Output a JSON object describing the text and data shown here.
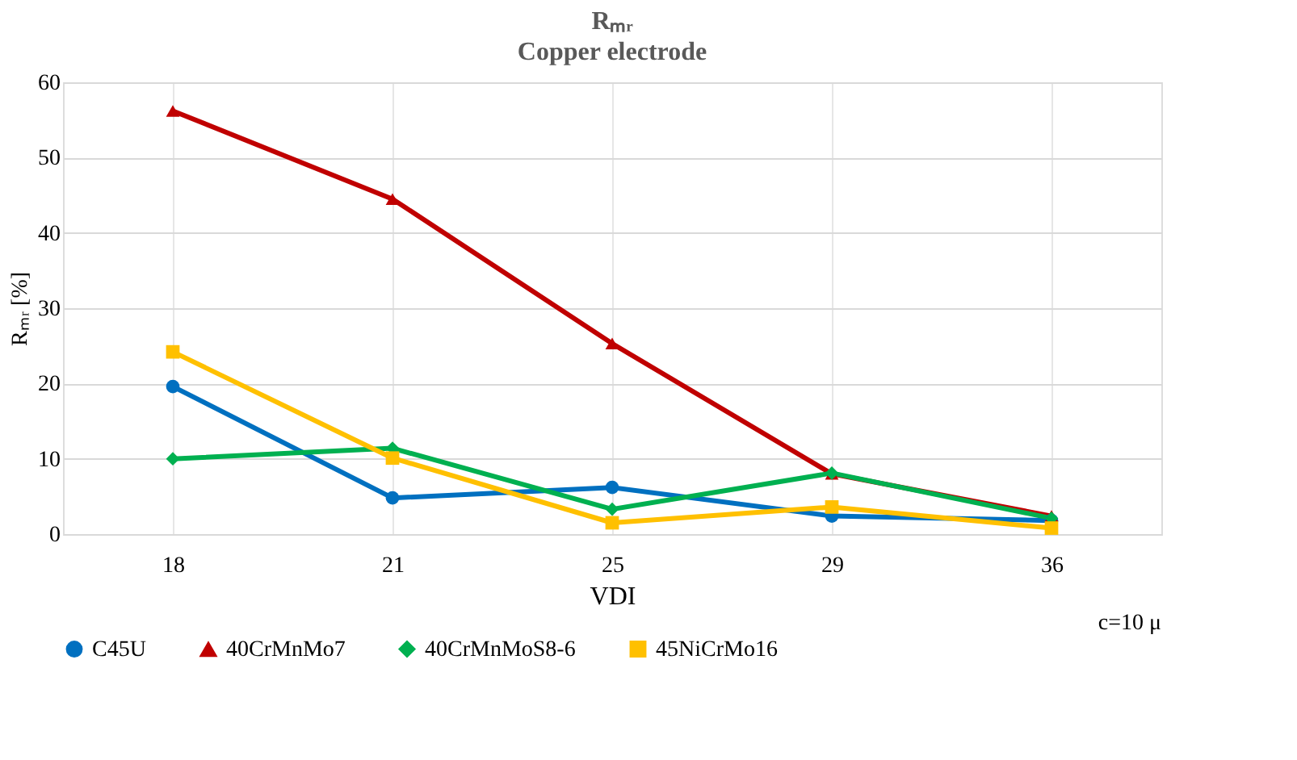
{
  "chart_data": {
    "type": "line",
    "title": "Rₘᵣ",
    "subtitle": "Copper electrode",
    "xlabel": "VDI",
    "ylabel": "Rₘᵣ [%]",
    "categories": [
      "18",
      "21",
      "25",
      "29",
      "36"
    ],
    "series": [
      {
        "name": "C45U",
        "color": "#0070c0",
        "marker": "circle",
        "values": [
          19.6,
          4.8,
          6.2,
          2.4,
          1.8
        ]
      },
      {
        "name": "40CrMnMo7",
        "color": "#c00000",
        "marker": "triangle",
        "values": [
          56.2,
          44.5,
          25.3,
          8.0,
          2.4
        ]
      },
      {
        "name": "40CrMnMoS8-6",
        "color": "#00b050",
        "marker": "diamond",
        "values": [
          10.0,
          11.4,
          3.3,
          8.1,
          2.1
        ]
      },
      {
        "name": "45NiCrMo16",
        "color": "#ffc000",
        "marker": "square",
        "values": [
          24.2,
          10.1,
          1.5,
          3.6,
          0.8
        ]
      }
    ],
    "ylim": [
      0,
      60
    ],
    "yticks": [
      0,
      10,
      20,
      30,
      40,
      50,
      60
    ],
    "grid": true,
    "legend": "bottom",
    "line_style": "solid",
    "annotations": [
      "c=10 μ"
    ]
  }
}
